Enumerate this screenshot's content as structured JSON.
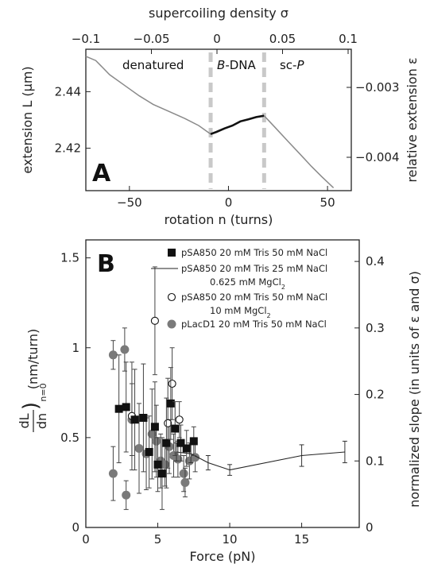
{
  "chart_data": [
    {
      "panel": "A",
      "type": "line",
      "xlabel": "rotation n (turns)",
      "ylabel": "extension L (μm)",
      "top_xlabel": "supercoiling density σ",
      "right_ylabel": "relative extension ε",
      "xlim": [
        -72,
        62
      ],
      "ylim": [
        2.405,
        2.455
      ],
      "x_ticks": [
        -50,
        0,
        50
      ],
      "y_ticks": [
        2.42,
        2.44
      ],
      "top_ticks": [
        -0.1,
        -0.05,
        0,
        0.05,
        0.1
      ],
      "top_tick_labels": [
        "-0.1",
        "-0.05",
        "0",
        "0.05",
        "0.1"
      ],
      "right_ticks": [
        -0.003,
        -0.004
      ],
      "right_tick_labels": [
        "-0.003",
        "-0.004"
      ],
      "grid": false,
      "region_labels": [
        {
          "text": "denatured",
          "x": -38
        },
        {
          "text": "B-DNA",
          "x": 4
        },
        {
          "text": "sc-P",
          "x": 32
        }
      ],
      "dashed_lines_x": [
        -9,
        18
      ],
      "series": [
        {
          "color": "#8a8a8a",
          "x": [
            -72,
            -67,
            -60,
            -52,
            -45,
            -38,
            -30,
            -22,
            -15,
            -10,
            -9
          ],
          "y": [
            2.4525,
            2.451,
            2.446,
            2.442,
            2.4385,
            2.4355,
            2.433,
            2.4305,
            2.428,
            2.4255,
            2.425
          ]
        },
        {
          "color": "#111111",
          "x": [
            -9,
            -6,
            -2,
            2,
            6,
            10,
            14,
            18
          ],
          "y": [
            2.425,
            2.4258,
            2.427,
            2.428,
            2.4295,
            2.4302,
            2.431,
            2.4315
          ]
        },
        {
          "color": "#8a8a8a",
          "x": [
            18,
            24,
            30,
            36,
            42,
            47,
            50,
            53
          ],
          "y": [
            2.4315,
            2.427,
            2.4225,
            2.418,
            2.4135,
            2.41,
            2.408,
            2.406
          ]
        }
      ],
      "panel_letter": "A"
    },
    {
      "panel": "B",
      "type": "scatter",
      "xlabel": "Force (pN)",
      "ylabel_main": "dL",
      "ylabel_den": "dn",
      "ylabel_sub": "n=0",
      "ylabel_unit": "(nm/turn)",
      "right_ylabel": "normalized slope (in units of ε and σ)",
      "xlim": [
        0,
        19
      ],
      "ylim": [
        0,
        1.6
      ],
      "x_ticks": [
        0,
        5,
        10,
        15
      ],
      "y_ticks": [
        0,
        0.5,
        1,
        1.5
      ],
      "y_tick_labels": [
        "0",
        "0.5",
        "1",
        "1.5"
      ],
      "right_ticks": [
        0,
        0.1,
        0.2,
        0.3,
        0.4
      ],
      "right_tick_labels": [
        "0",
        "0.1",
        "0.2",
        "0.3",
        "0.4"
      ],
      "right_ylim": [
        0,
        0.4324
      ],
      "grid": false,
      "legend_position": "top-right",
      "panel_letter": "B",
      "series": [
        {
          "name": "pSA850 20 mM Tris 50 mM NaCl",
          "marker": "square",
          "color": "#111111",
          "points": [
            {
              "x": 2.3,
              "y": 0.66,
              "err": 0.3
            },
            {
              "x": 2.8,
              "y": 0.67,
              "err": 0.25
            },
            {
              "x": 3.4,
              "y": 0.6,
              "err": 0.28
            },
            {
              "x": 4.0,
              "y": 0.61,
              "err": 0.3
            },
            {
              "x": 4.4,
              "y": 0.42,
              "err": 0.2
            },
            {
              "x": 4.8,
              "y": 0.56,
              "err": 0.25
            },
            {
              "x": 5.0,
              "y": 0.35,
              "err": 0.15
            },
            {
              "x": 5.3,
              "y": 0.3,
              "err": 0.2
            },
            {
              "x": 5.6,
              "y": 0.47,
              "err": 0.25
            },
            {
              "x": 5.9,
              "y": 0.69,
              "err": 0.2
            },
            {
              "x": 6.2,
              "y": 0.55,
              "err": 0.15
            },
            {
              "x": 6.6,
              "y": 0.47,
              "err": 0.1
            },
            {
              "x": 7.0,
              "y": 0.44,
              "err": 0.1
            },
            {
              "x": 7.5,
              "y": 0.48,
              "err": 0.08
            }
          ]
        },
        {
          "name": "pSA850 20 mM Tris 25 mM NaCl",
          "name_line2": "0.625 mM MgCl2",
          "marker": "line",
          "color": "#111111",
          "points": [
            {
              "x": 6.3,
              "y": 0.42,
              "err": 0.05
            },
            {
              "x": 7.3,
              "y": 0.41,
              "err": 0.05
            },
            {
              "x": 8.5,
              "y": 0.36,
              "err": 0.04
            },
            {
              "x": 10.0,
              "y": 0.32,
              "err": 0.03
            },
            {
              "x": 15.0,
              "y": 0.4,
              "err": 0.06
            },
            {
              "x": 18.0,
              "y": 0.42,
              "err": 0.06
            }
          ]
        },
        {
          "name": "pSA850 20 mM Tris 50 mM NaCl",
          "name_line2": "10 mM MgCl2",
          "marker": "open-circle",
          "color": "#111111",
          "points": [
            {
              "x": 3.2,
              "y": 0.62,
              "err": 0.3
            },
            {
              "x": 4.8,
              "y": 1.15,
              "err": 0.3
            },
            {
              "x": 5.7,
              "y": 0.58,
              "err": 0.25
            },
            {
              "x": 6.0,
              "y": 0.8,
              "err": 0.2
            },
            {
              "x": 6.5,
              "y": 0.6,
              "err": 0.1
            }
          ]
        },
        {
          "name": "pLacD1 20 mM Tris 50 mM NaCl",
          "marker": "filled-circle",
          "color": "#7a7a7a",
          "points": [
            {
              "x": 1.9,
              "y": 0.96,
              "err": 0.08
            },
            {
              "x": 1.9,
              "y": 0.3,
              "err": 0.15
            },
            {
              "x": 2.7,
              "y": 0.99,
              "err": 0.12
            },
            {
              "x": 2.8,
              "y": 0.18,
              "err": 0.08
            },
            {
              "x": 3.2,
              "y": 0.6,
              "err": 0.2
            },
            {
              "x": 3.7,
              "y": 0.44,
              "err": 0.25
            },
            {
              "x": 4.2,
              "y": 0.41,
              "err": 0.2
            },
            {
              "x": 4.6,
              "y": 0.52,
              "err": 0.25
            },
            {
              "x": 4.9,
              "y": 0.48,
              "err": 0.2
            },
            {
              "x": 5.2,
              "y": 0.37,
              "err": 0.15
            },
            {
              "x": 5.5,
              "y": 0.35,
              "err": 0.12
            },
            {
              "x": 5.8,
              "y": 0.45,
              "err": 0.15
            },
            {
              "x": 6.1,
              "y": 0.4,
              "err": 0.12
            },
            {
              "x": 6.4,
              "y": 0.38,
              "err": 0.1
            },
            {
              "x": 6.8,
              "y": 0.3,
              "err": 0.1
            },
            {
              "x": 6.9,
              "y": 0.25,
              "err": 0.08
            },
            {
              "x": 7.2,
              "y": 0.37,
              "err": 0.1
            },
            {
              "x": 7.6,
              "y": 0.39,
              "err": 0.08
            }
          ]
        }
      ]
    }
  ]
}
